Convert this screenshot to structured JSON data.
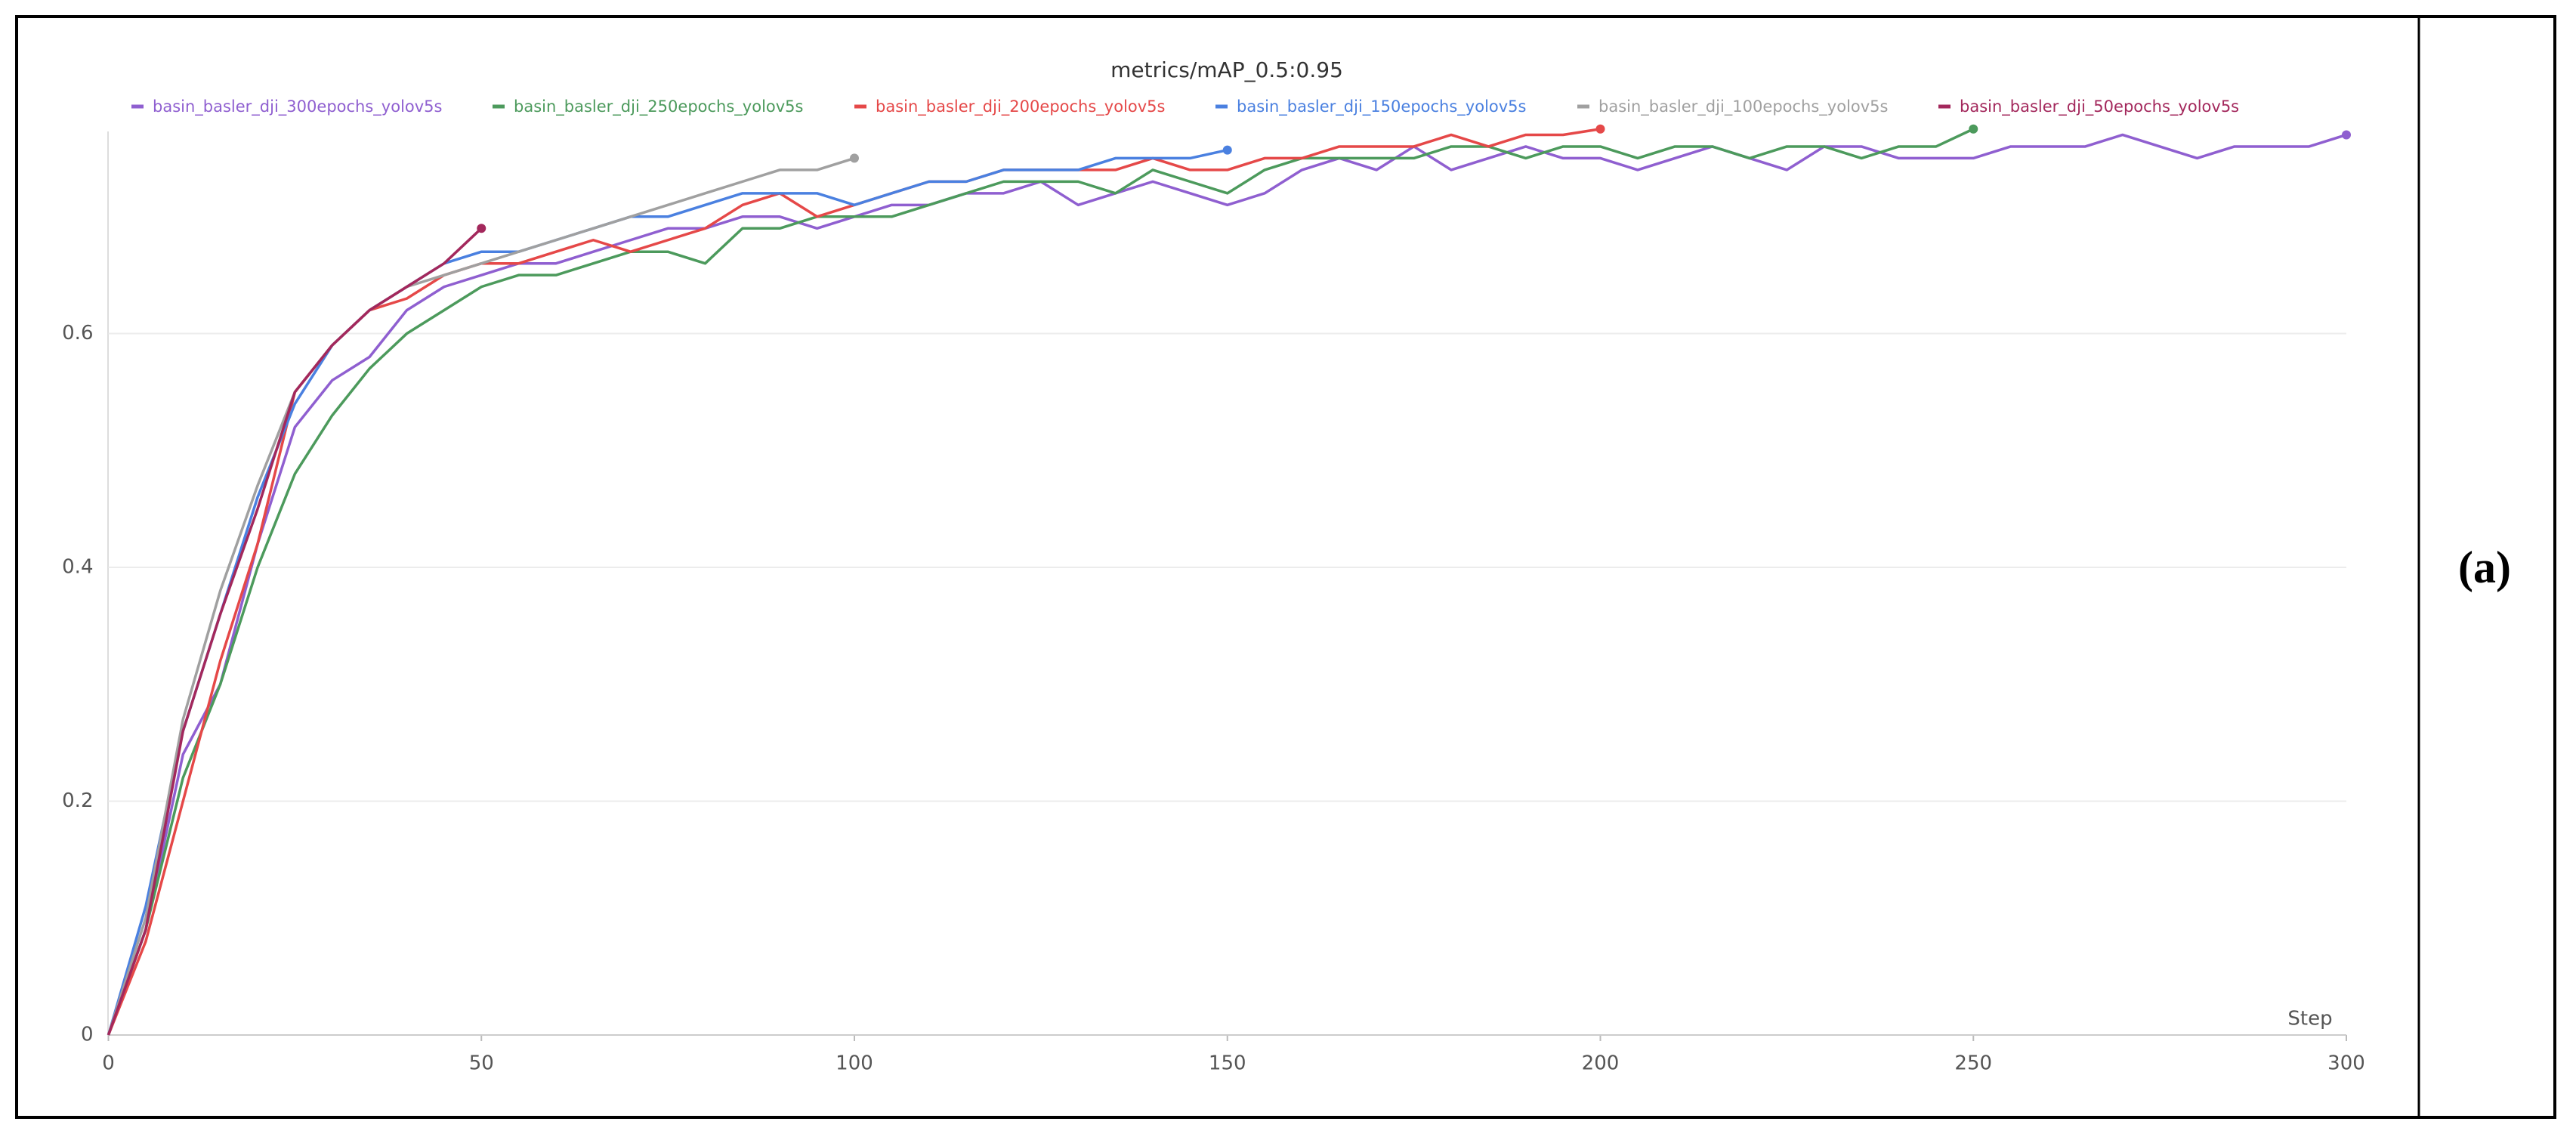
{
  "chart_data": {
    "type": "line",
    "title": "metrics/mAP_0.5:0.95",
    "panel_label": "(a)",
    "x_label": "Step",
    "xlim": [
      0,
      300
    ],
    "xticks": [
      0,
      50,
      100,
      150,
      200,
      250,
      300
    ],
    "ylim": [
      0,
      0.78
    ],
    "yticks": [
      0,
      0.2,
      0.4,
      0.6
    ],
    "grid": true,
    "series": [
      {
        "name": "basin_basler_dji_300epochs_yolov5s",
        "color": "#8f5fd0",
        "x": [
          0,
          5,
          10,
          15,
          20,
          25,
          30,
          35,
          40,
          45,
          50,
          55,
          60,
          65,
          70,
          75,
          80,
          85,
          90,
          95,
          100,
          105,
          110,
          115,
          120,
          125,
          130,
          135,
          140,
          145,
          150,
          155,
          160,
          165,
          170,
          175,
          180,
          185,
          190,
          195,
          200,
          205,
          210,
          215,
          220,
          225,
          230,
          235,
          240,
          245,
          250,
          255,
          260,
          265,
          270,
          275,
          280,
          285,
          290,
          295,
          300
        ],
        "values": [
          0,
          0.09,
          0.24,
          0.3,
          0.42,
          0.52,
          0.56,
          0.58,
          0.62,
          0.64,
          0.65,
          0.66,
          0.66,
          0.67,
          0.68,
          0.69,
          0.69,
          0.7,
          0.7,
          0.69,
          0.7,
          0.71,
          0.71,
          0.72,
          0.72,
          0.73,
          0.71,
          0.72,
          0.73,
          0.72,
          0.71,
          0.72,
          0.74,
          0.75,
          0.74,
          0.76,
          0.74,
          0.75,
          0.76,
          0.75,
          0.75,
          0.74,
          0.75,
          0.76,
          0.75,
          0.74,
          0.76,
          0.76,
          0.75,
          0.75,
          0.75,
          0.76,
          0.76,
          0.76,
          0.77,
          0.76,
          0.75,
          0.76,
          0.76,
          0.76,
          0.77
        ]
      },
      {
        "name": "basin_basler_dji_250epochs_yolov5s",
        "color": "#4c9a5c",
        "x": [
          0,
          5,
          10,
          15,
          20,
          25,
          30,
          35,
          40,
          45,
          50,
          55,
          60,
          65,
          70,
          75,
          80,
          85,
          90,
          95,
          100,
          105,
          110,
          115,
          120,
          125,
          130,
          135,
          140,
          145,
          150,
          155,
          160,
          165,
          170,
          175,
          180,
          185,
          190,
          195,
          200,
          205,
          210,
          215,
          220,
          225,
          230,
          235,
          240,
          245,
          250
        ],
        "values": [
          0,
          0.09,
          0.22,
          0.3,
          0.4,
          0.48,
          0.53,
          0.57,
          0.6,
          0.62,
          0.64,
          0.65,
          0.65,
          0.66,
          0.67,
          0.67,
          0.66,
          0.69,
          0.69,
          0.7,
          0.7,
          0.7,
          0.71,
          0.72,
          0.73,
          0.73,
          0.73,
          0.72,
          0.74,
          0.73,
          0.72,
          0.74,
          0.75,
          0.75,
          0.75,
          0.75,
          0.76,
          0.76,
          0.75,
          0.76,
          0.76,
          0.75,
          0.76,
          0.76,
          0.75,
          0.76,
          0.76,
          0.75,
          0.76,
          0.76,
          0.775
        ]
      },
      {
        "name": "basin_basler_dji_200epochs_yolov5s",
        "color": "#e54848",
        "x": [
          0,
          5,
          10,
          15,
          20,
          25,
          30,
          35,
          40,
          45,
          50,
          55,
          60,
          65,
          70,
          75,
          80,
          85,
          90,
          95,
          100,
          105,
          110,
          115,
          120,
          125,
          130,
          135,
          140,
          145,
          150,
          155,
          160,
          165,
          170,
          175,
          180,
          185,
          190,
          195,
          200
        ],
        "values": [
          0,
          0.08,
          0.2,
          0.32,
          0.42,
          0.55,
          0.59,
          0.62,
          0.63,
          0.65,
          0.66,
          0.66,
          0.67,
          0.68,
          0.67,
          0.68,
          0.69,
          0.71,
          0.72,
          0.7,
          0.71,
          0.72,
          0.73,
          0.73,
          0.74,
          0.74,
          0.74,
          0.74,
          0.75,
          0.74,
          0.74,
          0.75,
          0.75,
          0.76,
          0.76,
          0.76,
          0.77,
          0.76,
          0.77,
          0.77,
          0.775
        ]
      },
      {
        "name": "basin_basler_dji_150epochs_yolov5s",
        "color": "#4a80e0",
        "x": [
          0,
          5,
          10,
          15,
          20,
          25,
          30,
          35,
          40,
          45,
          50,
          55,
          60,
          65,
          70,
          75,
          80,
          85,
          90,
          95,
          100,
          105,
          110,
          115,
          120,
          125,
          130,
          135,
          140,
          145,
          150
        ],
        "values": [
          0,
          0.11,
          0.26,
          0.36,
          0.46,
          0.54,
          0.59,
          0.62,
          0.64,
          0.66,
          0.67,
          0.67,
          0.68,
          0.69,
          0.7,
          0.7,
          0.71,
          0.72,
          0.72,
          0.72,
          0.71,
          0.72,
          0.73,
          0.73,
          0.74,
          0.74,
          0.74,
          0.75,
          0.75,
          0.75,
          0.757
        ]
      },
      {
        "name": "basin_basler_dji_100epochs_yolov5s",
        "color": "#a0a0a0",
        "x": [
          0,
          5,
          10,
          15,
          20,
          25,
          30,
          35,
          40,
          45,
          50,
          55,
          60,
          65,
          70,
          75,
          80,
          85,
          90,
          95,
          100
        ],
        "values": [
          0,
          0.1,
          0.27,
          0.38,
          0.47,
          0.55,
          0.59,
          0.62,
          0.64,
          0.65,
          0.66,
          0.67,
          0.68,
          0.69,
          0.7,
          0.71,
          0.72,
          0.73,
          0.74,
          0.74,
          0.75
        ]
      },
      {
        "name": "basin_basler_dji_50epochs_yolov5s",
        "color": "#a3285c",
        "x": [
          0,
          5,
          10,
          15,
          20,
          25,
          30,
          35,
          40,
          45,
          50
        ],
        "values": [
          0,
          0.09,
          0.26,
          0.36,
          0.45,
          0.55,
          0.59,
          0.62,
          0.64,
          0.66,
          0.69
        ]
      }
    ]
  }
}
